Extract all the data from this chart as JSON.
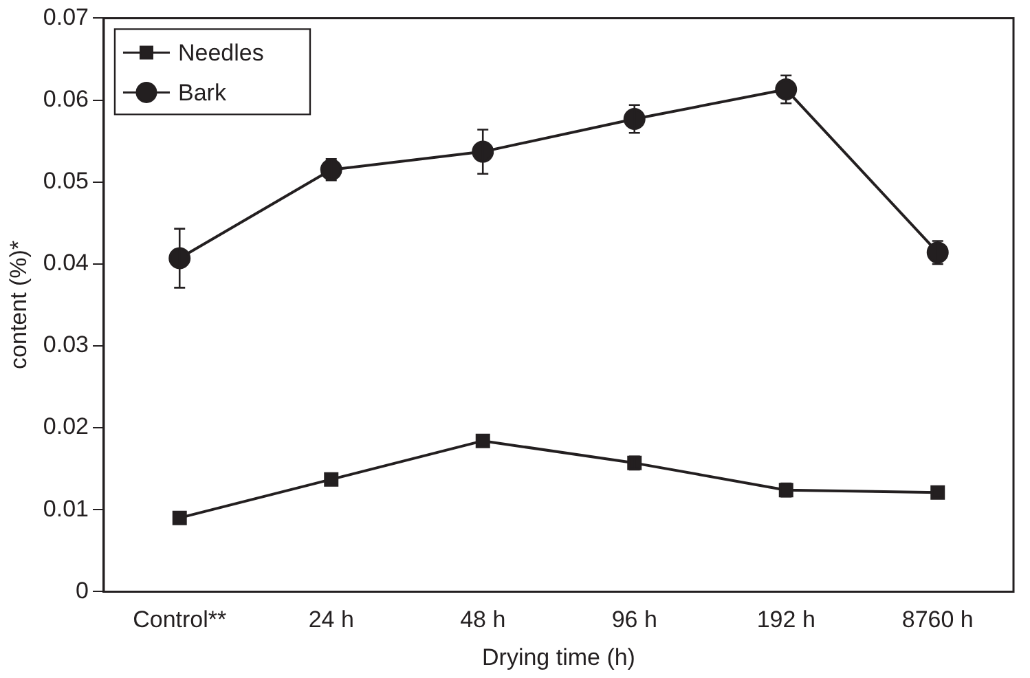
{
  "chart_data": {
    "type": "line",
    "xlabel": "Drying time (h)",
    "ylabel": "content (%)*",
    "categories": [
      "Control**",
      "24 h",
      "48 h",
      "96 h",
      "192 h",
      "8760 h"
    ],
    "series": [
      {
        "name": "Needles",
        "color": "#231f20",
        "marker": "square",
        "values": [
          0.009,
          0.0137,
          0.0184,
          0.0157,
          0.0124,
          0.0121
        ],
        "errors": [
          null,
          null,
          null,
          0.0008,
          0.0008,
          null
        ]
      },
      {
        "name": "Bark",
        "color": "#231f20",
        "marker": "circle",
        "values": [
          0.0407,
          0.0515,
          0.0537,
          0.0577,
          0.0613,
          0.0414
        ],
        "errors": [
          0.0036,
          0.0013,
          0.0027,
          0.0017,
          0.0017,
          0.0014
        ]
      }
    ],
    "ylim": [
      0,
      0.07
    ],
    "yticks": [
      0,
      0.01,
      0.02,
      0.03,
      0.04,
      0.05,
      0.06,
      0.07
    ],
    "grid": false,
    "legend": "top left"
  }
}
